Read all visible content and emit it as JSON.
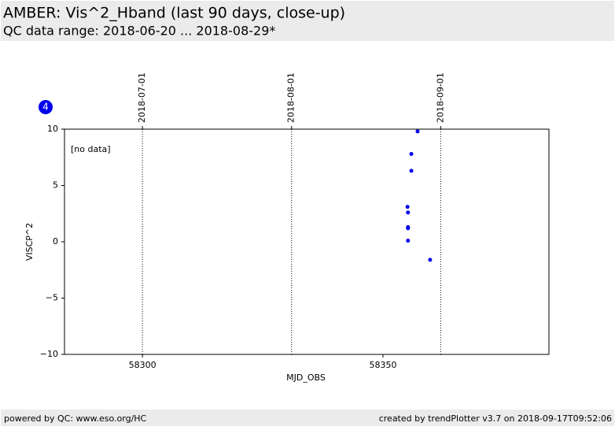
{
  "header": {
    "title": "AMBER: Vis^2_Hband (last 90 days, close-up)",
    "subtitle": "QC data range: 2018-06-20 ... 2018-08-29*"
  },
  "chart_data": {
    "type": "scatter",
    "badge": "4",
    "annotation": "[no data]",
    "xlabel": "MJD_OBS",
    "ylabel": "VISCP^2",
    "color": "#0000ee",
    "x": [
      58357.2,
      58355.9,
      58355.9,
      58355.1,
      58355.2,
      58355.2,
      58355.2,
      58355.2,
      58359.8
    ],
    "values": [
      9.8,
      7.8,
      6.3,
      3.1,
      2.6,
      1.3,
      1.2,
      0.1,
      -1.6
    ],
    "xlim": [
      58283.8,
      58384.5
    ],
    "xticks": [
      58300,
      58350
    ],
    "x2ticks": [
      {
        "value": 58300,
        "label": "2018-07-01"
      },
      {
        "value": 58331,
        "label": "2018-08-01"
      },
      {
        "value": 58362,
        "label": "2018-09-01"
      }
    ],
    "ylim": [
      -10,
      10
    ],
    "yticks": [
      {
        "value": -10,
        "label": "−10"
      },
      {
        "value": -5,
        "label": "−5"
      },
      0,
      5,
      10
    ]
  },
  "footer": {
    "left": "powered by QC: www.eso.org/HC",
    "right": "created by trendPlotter v3.7 on 2018-09-17T09:52:06"
  }
}
